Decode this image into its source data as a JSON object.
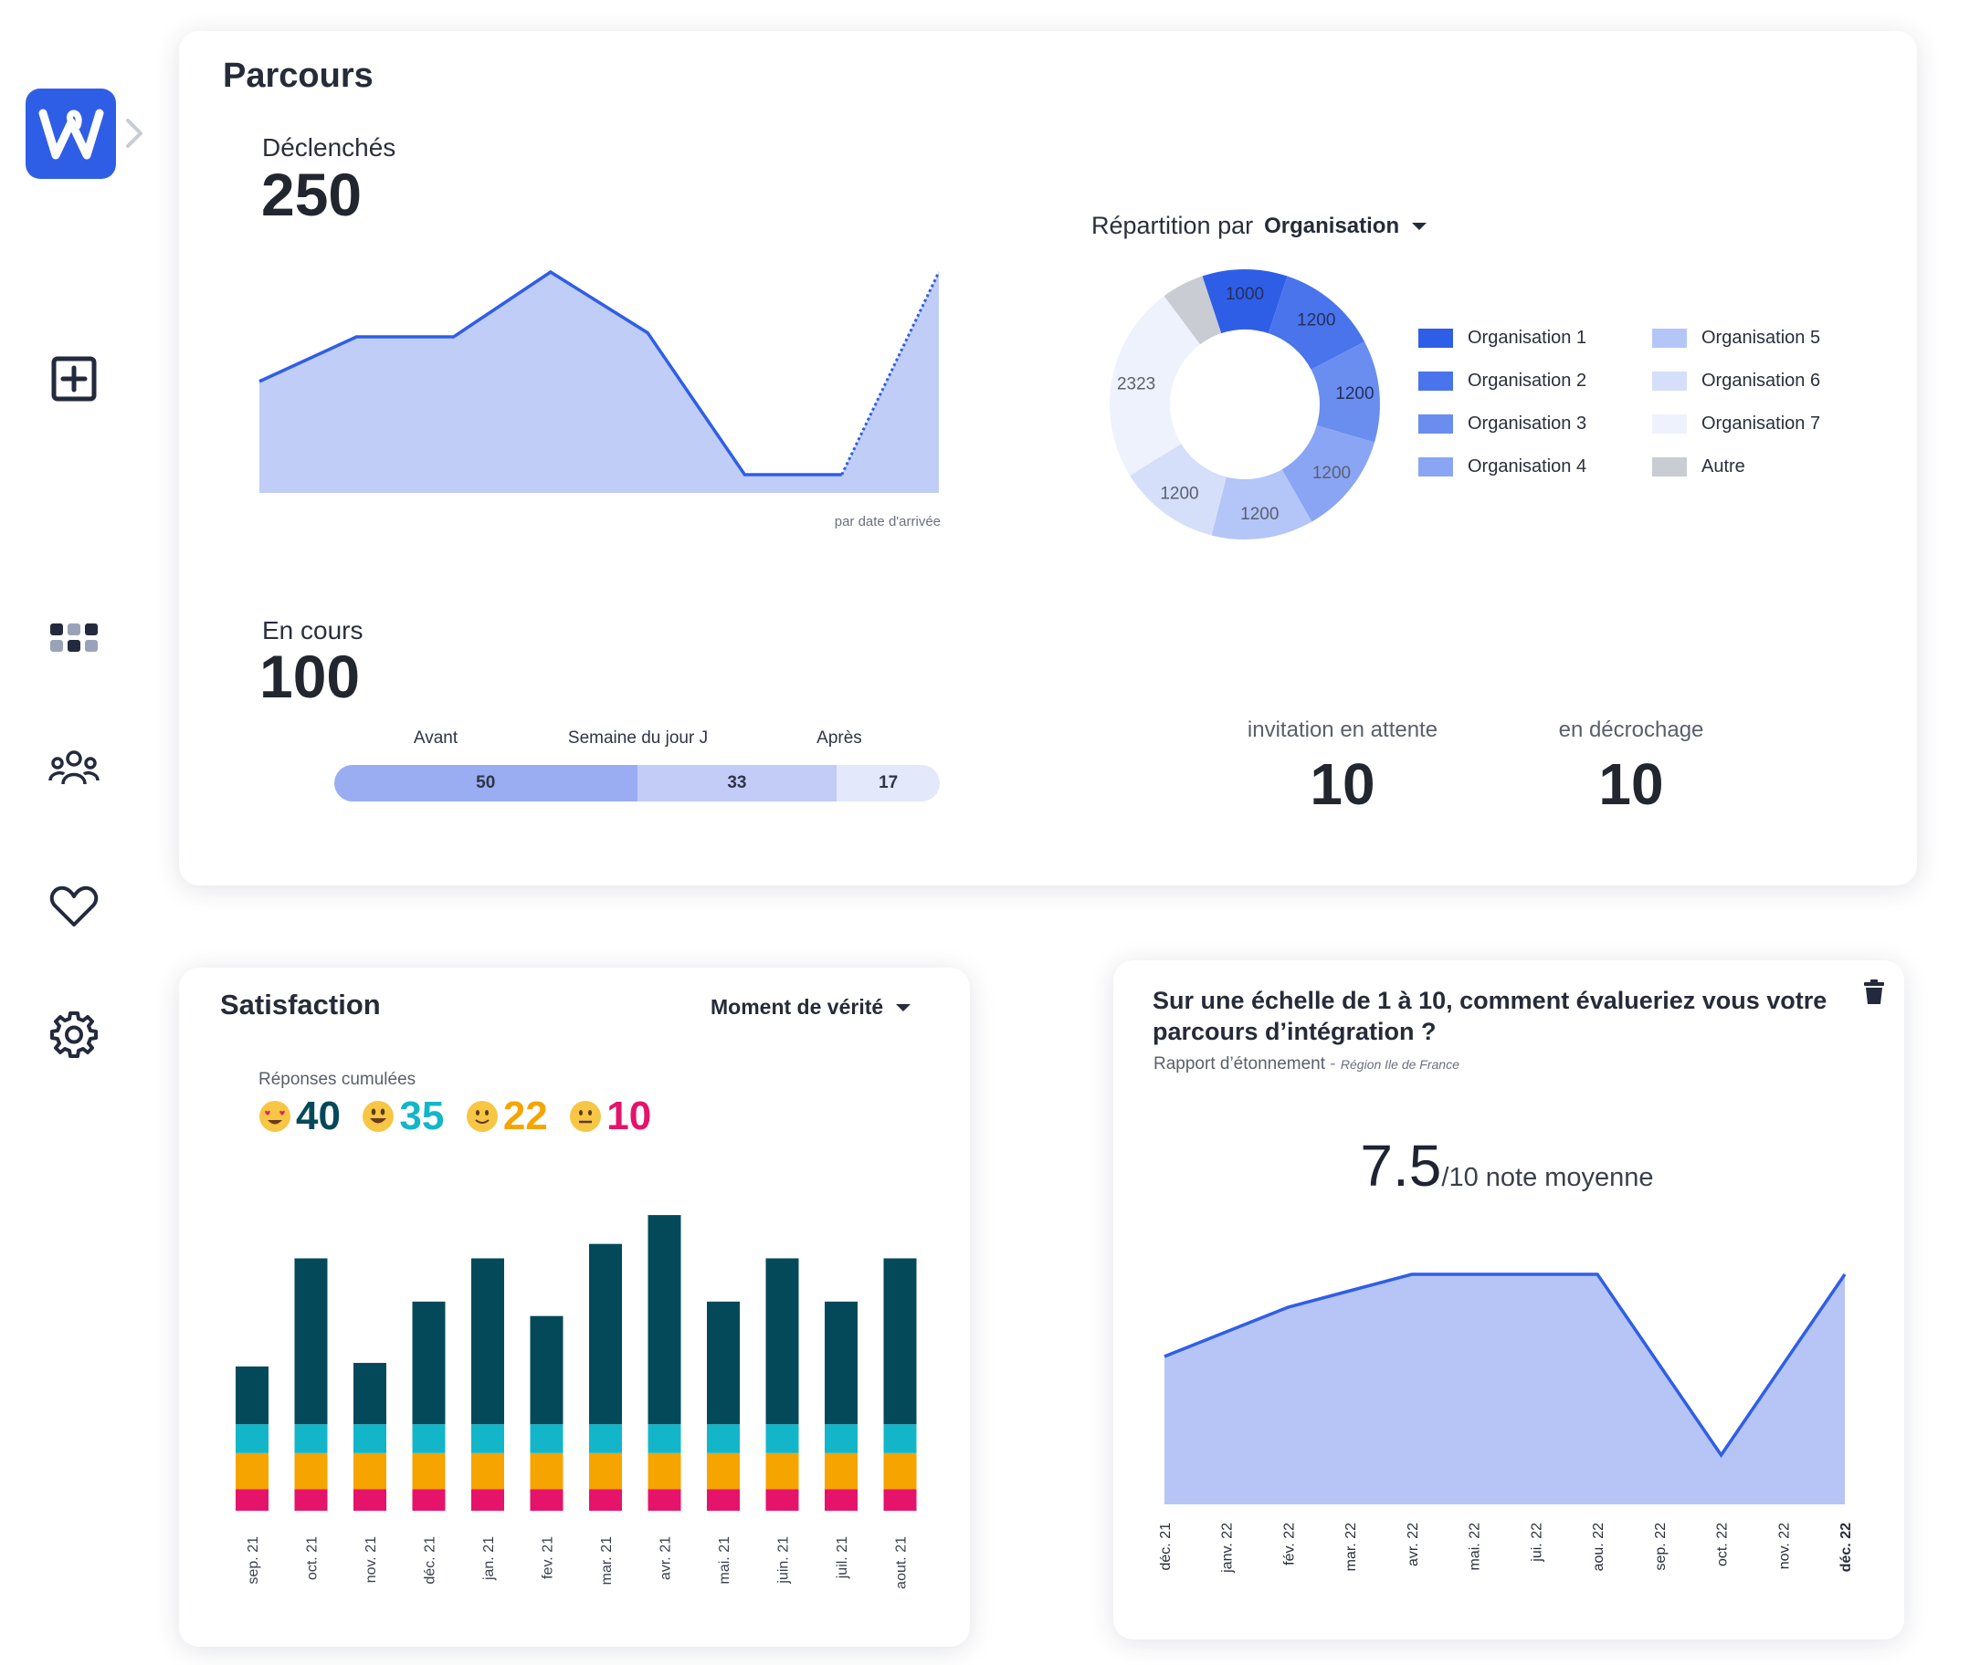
{
  "sidebar": {
    "items": [
      {
        "icon": "add-square-icon"
      },
      {
        "icon": "apps-grid-icon"
      },
      {
        "icon": "people-group-icon"
      },
      {
        "icon": "heart-icon"
      },
      {
        "icon": "gear-icon"
      }
    ]
  },
  "parcours": {
    "title": "Parcours",
    "triggered_label": "Déclenchés",
    "triggered_value": "250",
    "area_caption": "par date d'arrivée",
    "area_values": [
      46,
      68,
      68,
      100,
      70,
      0,
      0,
      100
    ],
    "ongoing_label": "En cours",
    "ongoing_value": "100",
    "progress": {
      "labels": [
        "Avant",
        "Semaine du jour J",
        "Après"
      ],
      "values": [
        50,
        33,
        17
      ],
      "colors": [
        "#9aadf3",
        "#c3ccf6",
        "#e3e8fb"
      ]
    },
    "distribution_label": "Répartition par",
    "distribution_select": "Organisation",
    "donut": {
      "slices": [
        {
          "label": "1000",
          "value": 1000,
          "color": "#2f5ee6"
        },
        {
          "label": "1200",
          "value": 1200,
          "color": "#4a74ec"
        },
        {
          "label": "1200",
          "value": 1200,
          "color": "#6a8df0"
        },
        {
          "label": "1200",
          "value": 1200,
          "color": "#8aa5f3"
        },
        {
          "label": "1200",
          "value": 1200,
          "color": "#b4c5f7"
        },
        {
          "label": "1200",
          "value": 1200,
          "color": "#d6dff9"
        },
        {
          "label": "2323",
          "value": 2323,
          "color": "#eef2fc"
        },
        {
          "label": "",
          "value": 500,
          "color": "#c9ccd2"
        }
      ]
    },
    "legend": [
      {
        "label": "Organisation 1",
        "color": "#2f5ee6"
      },
      {
        "label": "Organisation 2",
        "color": "#4a74ec"
      },
      {
        "label": "Organisation 3",
        "color": "#6a8df0"
      },
      {
        "label": "Organisation 4",
        "color": "#8aa5f3"
      },
      {
        "label": "Organisation 5",
        "color": "#b4c5f7"
      },
      {
        "label": "Organisation 6",
        "color": "#d6dff9"
      },
      {
        "label": "Organisation 7",
        "color": "#eef2fc"
      },
      {
        "label": "Autre",
        "color": "#c9ccd2"
      }
    ],
    "pending_label": "invitation en attente",
    "pending_value": "10",
    "dropout_label": "en décrochage",
    "dropout_value": "10"
  },
  "satisfaction": {
    "title": "Satisfaction",
    "select": "Moment de vérité",
    "cumulative_label": "Réponses cumulées",
    "counts": [
      {
        "value": "40",
        "color": "#03495a",
        "face": "heart-eyes-emoji-icon"
      },
      {
        "value": "35",
        "color": "#13b6c9",
        "face": "grinning-emoji-icon"
      },
      {
        "value": "22",
        "color": "#f5a400",
        "face": "smiling-emoji-icon"
      },
      {
        "value": "10",
        "color": "#e6136a",
        "face": "neutral-emoji-icon"
      }
    ]
  },
  "chart_data": [
    {
      "type": "bar",
      "categories": [
        "sep. 21",
        "oct. 21",
        "nov. 21",
        "déc. 21",
        "jan. 21",
        "fev. 21",
        "mar. 21",
        "avr. 21",
        "mai. 21",
        "juin. 21",
        "juil. 21",
        "aout. 21"
      ],
      "series": [
        {
          "color": "#e6136a",
          "values": [
            3,
            3,
            3,
            3,
            3,
            3,
            3,
            3,
            3,
            3,
            3,
            3
          ]
        },
        {
          "color": "#f5a400",
          "values": [
            5,
            5,
            5,
            5,
            5,
            5,
            5,
            5,
            5,
            5,
            5,
            5
          ]
        },
        {
          "color": "#13b6c9",
          "values": [
            4,
            4,
            4,
            4,
            4,
            4,
            4,
            4,
            4,
            4,
            4,
            4
          ]
        },
        {
          "color": "#03495a",
          "values": [
            8,
            23,
            8.5,
            17,
            23,
            15,
            25,
            29,
            17,
            23,
            17,
            23
          ]
        }
      ],
      "stacked": true
    },
    {
      "type": "area",
      "title": "Sur une échelle de 1 à 10, comment évalueriez vous votre parcours d’intégration ?",
      "categories": [
        "déc. 21",
        "janv. 22",
        "fév. 22",
        "mar. 22",
        "avr. 22",
        "mai. 22",
        "jui. 22",
        "aou. 22",
        "sep. 22",
        "oct. 22",
        "nov. 22",
        "déc. 22"
      ],
      "values": [
        7.0,
        7.3,
        7.6,
        7.8,
        8.0,
        8.0,
        8.0,
        8.0,
        6.9,
        5.8,
        6.9,
        8.0
      ]
    }
  ],
  "rating": {
    "title": "Sur une échelle de 1 à 10, comment évalueriez vous votre parcours d’intégration ?",
    "source": "Rapport d’étonnement",
    "separator": " - ",
    "region": "Région Ile de France",
    "score": "7.5",
    "scale": "/10 note moyenne"
  }
}
